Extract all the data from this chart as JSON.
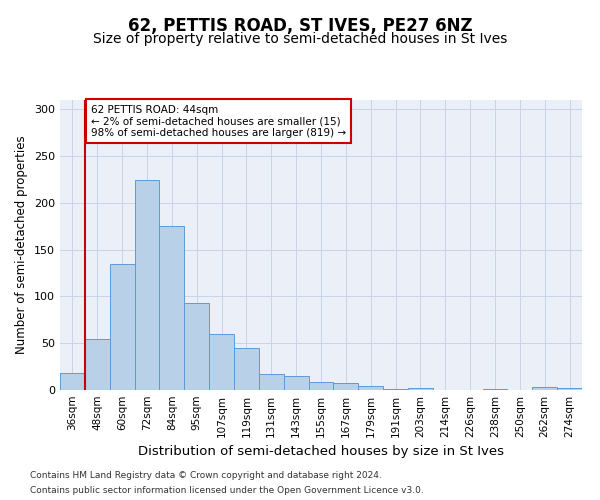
{
  "title": "62, PETTIS ROAD, ST IVES, PE27 6NZ",
  "subtitle": "Size of property relative to semi-detached houses in St Ives",
  "xlabel": "Distribution of semi-detached houses by size in St Ives",
  "ylabel": "Number of semi-detached properties",
  "footer1": "Contains HM Land Registry data © Crown copyright and database right 2024.",
  "footer2": "Contains public sector information licensed under the Open Government Licence v3.0.",
  "categories": [
    "36sqm",
    "48sqm",
    "60sqm",
    "72sqm",
    "84sqm",
    "95sqm",
    "107sqm",
    "119sqm",
    "131sqm",
    "143sqm",
    "155sqm",
    "167sqm",
    "179sqm",
    "191sqm",
    "203sqm",
    "214sqm",
    "226sqm",
    "238sqm",
    "250sqm",
    "262sqm",
    "274sqm"
  ],
  "values": [
    18,
    55,
    135,
    225,
    175,
    93,
    60,
    45,
    17,
    15,
    9,
    8,
    4,
    1,
    2,
    0,
    0,
    1,
    0,
    3,
    2
  ],
  "bar_color": "#b8d0e8",
  "bar_edge_color": "#5b9bd5",
  "annotation_text1": "62 PETTIS ROAD: 44sqm",
  "annotation_text2": "← 2% of semi-detached houses are smaller (15)",
  "annotation_text3": "98% of semi-detached houses are larger (819) →",
  "annotation_box_color": "#ffffff",
  "annotation_box_edge": "#cc0000",
  "property_line_color": "#cc0000",
  "ylim": [
    0,
    310
  ],
  "yticks": [
    0,
    50,
    100,
    150,
    200,
    250,
    300
  ],
  "grid_color": "#c8d4e8",
  "bg_color": "#eaeff8",
  "title_fontsize": 12,
  "subtitle_fontsize": 10,
  "tick_fontsize": 7.5,
  "ylabel_fontsize": 8.5,
  "xlabel_fontsize": 9.5,
  "footer_fontsize": 6.5
}
